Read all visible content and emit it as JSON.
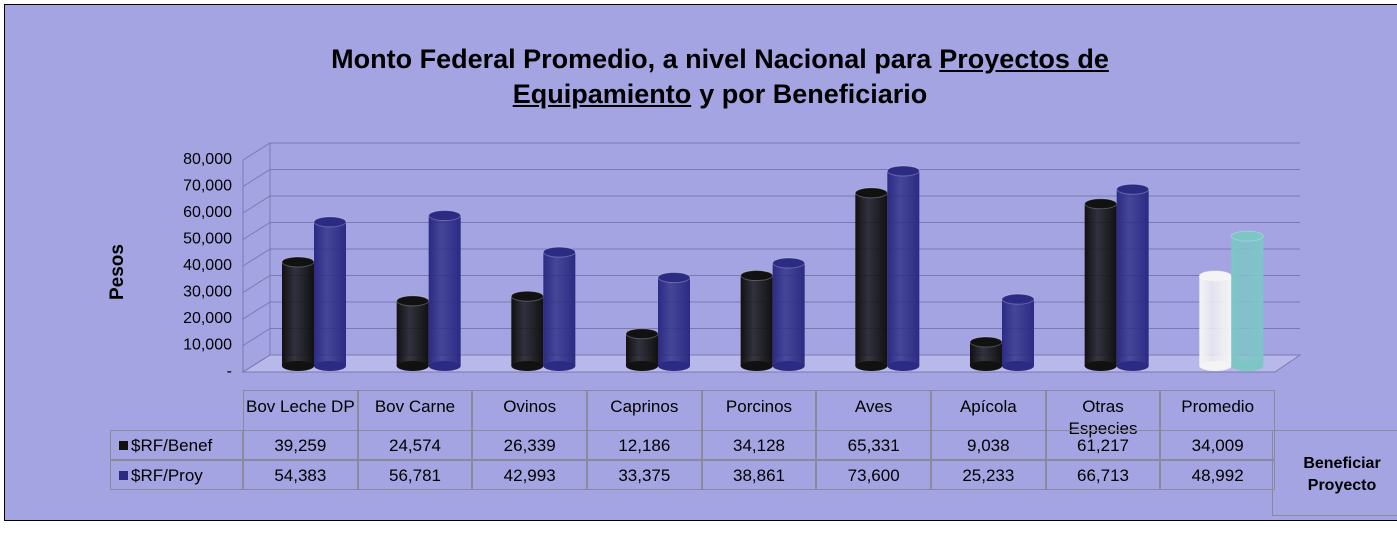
{
  "chart_data": {
    "type": "bar",
    "title_lines": [
      [
        "Monto Federal Promedio, a nivel Nacional para",
        "Proyectos de"
      ],
      [
        "Equipamiento",
        "y por Beneficiario"
      ]
    ],
    "ylabel": "Pesos",
    "categories": [
      "Bov Leche DP",
      "Bov Carne",
      "Ovinos",
      "Caprinos",
      "Porcinos",
      "Aves",
      "Apícola",
      "Otras Especies",
      "Promedio"
    ],
    "series": [
      {
        "name": "$RF/Benef",
        "color": "#111111",
        "colors": [
          "#111111",
          "#111111",
          "#111111",
          "#111111",
          "#111111",
          "#111111",
          "#111111",
          "#111111",
          "#f4f4f4"
        ],
        "values": [
          39259,
          24574,
          26339,
          12186,
          34128,
          65331,
          9038,
          61217,
          34009
        ],
        "value_labels": [
          "39,259",
          "24,574",
          "26,339",
          "12,186",
          "34,128",
          "65,331",
          "9,038",
          "61,217",
          "34,009"
        ]
      },
      {
        "name": "$RF/Proy",
        "color": "#2b2b84",
        "colors": [
          "#2b2b84",
          "#2b2b84",
          "#2b2b84",
          "#2b2b84",
          "#2b2b84",
          "#2b2b84",
          "#2b2b84",
          "#2b2b84",
          "#7cc6c6"
        ],
        "values": [
          54383,
          56781,
          42993,
          33375,
          38861,
          73600,
          25233,
          66713,
          48992
        ],
        "value_labels": [
          "54,383",
          "56,781",
          "42,993",
          "33,375",
          "38,861",
          "73,600",
          "25,233",
          "66,713",
          "48,992"
        ]
      }
    ],
    "ylim": [
      0,
      80000
    ],
    "yticks": [
      {
        "value": 0,
        "label": "-"
      },
      {
        "value": 10000,
        "label": "10,000"
      },
      {
        "value": 20000,
        "label": "20,000"
      },
      {
        "value": 30000,
        "label": "30,000"
      },
      {
        "value": 40000,
        "label": "40,000"
      },
      {
        "value": 50000,
        "label": "50,000"
      },
      {
        "value": 60000,
        "label": "60,000"
      },
      {
        "value": 70000,
        "label": "70,000"
      },
      {
        "value": 80000,
        "label": "80,000"
      }
    ],
    "grid": true,
    "side_box": [
      "Beneficiar",
      "Proyecto"
    ]
  }
}
